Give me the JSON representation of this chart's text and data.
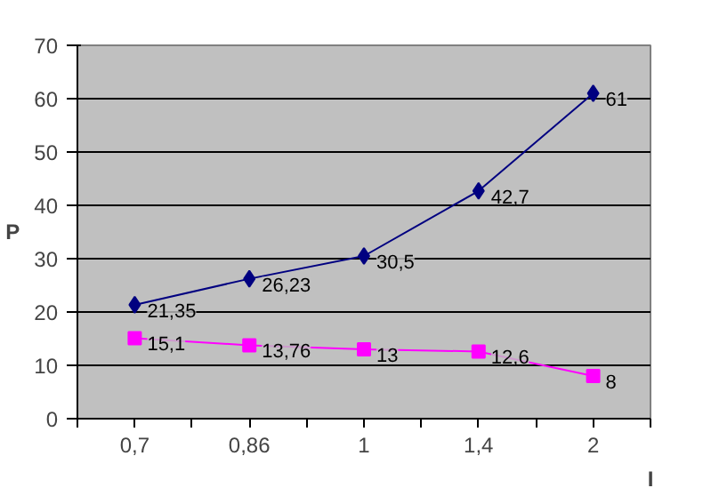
{
  "chart_data": {
    "type": "line",
    "xlabel": "I",
    "ylabel": "P",
    "categories": [
      "0,7",
      "0,86",
      "1",
      "1,4",
      "2"
    ],
    "series": [
      {
        "color": "#000080",
        "marker": "diamond",
        "values": [
          21.35,
          26.23,
          30.5,
          42.7,
          61
        ],
        "value_labels": [
          "21,35",
          "26,23",
          "30,5",
          "42,7",
          "61"
        ]
      },
      {
        "color": "#ff00ff",
        "marker": "square",
        "values": [
          15.1,
          13.76,
          13,
          12.6,
          8
        ],
        "value_labels": [
          "15,1",
          "13,76",
          "13",
          "12,6",
          "8"
        ]
      }
    ],
    "ylim": [
      0,
      70
    ],
    "yticks": [
      0,
      10,
      20,
      30,
      40,
      50,
      60,
      70
    ],
    "grid": "y"
  }
}
